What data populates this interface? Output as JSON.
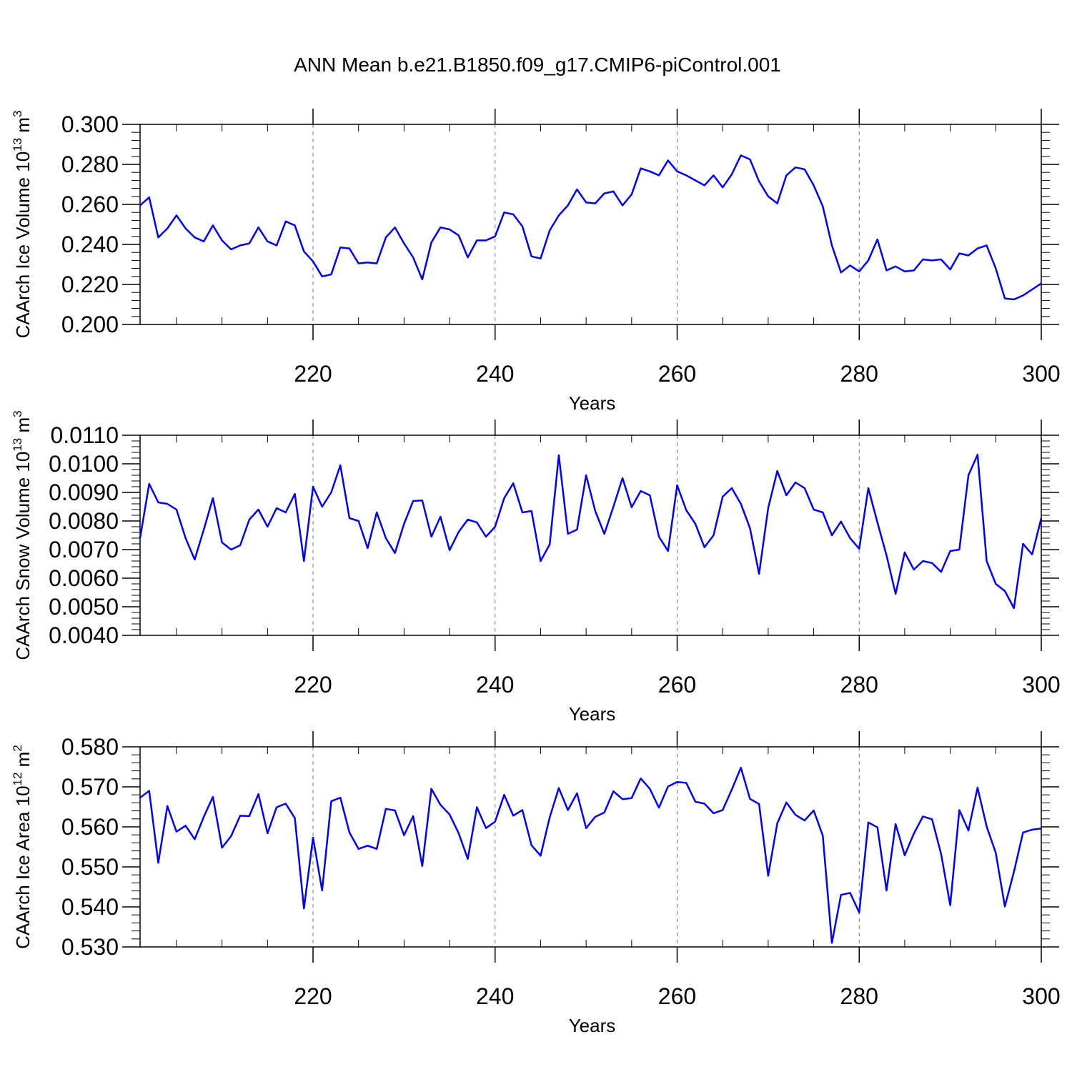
{
  "title": "ANN Mean b.e21.B1850.f09_g17.CMIP6-piControl.001",
  "colors": {
    "line": "#0000ff",
    "axis": "#000000",
    "grid": "#777777"
  },
  "chart_data": [
    {
      "type": "line",
      "name": "ice-volume",
      "xlabel": "Years",
      "ylabel": {
        "prefix": "CAArch Ice Volume 10",
        "exponent": "13",
        "unit": " m",
        "unit_exponent": "3"
      },
      "xlim": [
        201,
        300
      ],
      "ylim": [
        0.2,
        0.3
      ],
      "xticks": [
        "220",
        "240",
        "260",
        "280",
        "300"
      ],
      "xtick_values": [
        220,
        240,
        260,
        280,
        300
      ],
      "yticks": [
        "0.200",
        "0.220",
        "0.240",
        "0.260",
        "0.280",
        "0.300"
      ],
      "ytick_values": [
        0.2,
        0.22,
        0.24,
        0.26,
        0.28,
        0.3
      ],
      "x_start": 201,
      "values": [
        0.2595,
        0.2635,
        0.2435,
        0.248,
        0.2545,
        0.248,
        0.2435,
        0.2415,
        0.2495,
        0.242,
        0.2375,
        0.2395,
        0.2405,
        0.2485,
        0.2415,
        0.2395,
        0.2515,
        0.2495,
        0.2365,
        0.2315,
        0.224,
        0.225,
        0.2385,
        0.238,
        0.2305,
        0.231,
        0.2305,
        0.2435,
        0.2485,
        0.2405,
        0.2335,
        0.2225,
        0.241,
        0.2485,
        0.2475,
        0.2445,
        0.2335,
        0.242,
        0.242,
        0.244,
        0.256,
        0.255,
        0.249,
        0.234,
        0.233,
        0.247,
        0.2545,
        0.2595,
        0.2675,
        0.261,
        0.2605,
        0.2655,
        0.2665,
        0.2595,
        0.265,
        0.278,
        0.2765,
        0.2745,
        0.282,
        0.2765,
        0.2745,
        0.272,
        0.2695,
        0.2745,
        0.2685,
        0.275,
        0.2845,
        0.2825,
        0.2715,
        0.264,
        0.2605,
        0.2745,
        0.2785,
        0.2775,
        0.2695,
        0.259,
        0.2395,
        0.226,
        0.2295,
        0.2265,
        0.232,
        0.2425,
        0.227,
        0.229,
        0.2265,
        0.227,
        0.2325,
        0.232,
        0.2325,
        0.2275,
        0.2355,
        0.2345,
        0.238,
        0.2395,
        0.228,
        0.213,
        0.2125,
        0.2145,
        0.2175,
        0.2205
      ]
    },
    {
      "type": "line",
      "name": "snow-volume",
      "xlabel": "Years",
      "ylabel": {
        "prefix": "CAArch Snow Volume 10",
        "exponent": "13",
        "unit": " m",
        "unit_exponent": "3"
      },
      "xlim": [
        201,
        300
      ],
      "ylim": [
        0.004,
        0.011
      ],
      "xticks": [
        "220",
        "240",
        "260",
        "280",
        "300"
      ],
      "xtick_values": [
        220,
        240,
        260,
        280,
        300
      ],
      "yticks": [
        "0.0040",
        "0.0050",
        "0.0060",
        "0.0070",
        "0.0080",
        "0.0090",
        "0.0100",
        "0.0110"
      ],
      "ytick_values": [
        0.004,
        0.005,
        0.006,
        0.007,
        0.008,
        0.009,
        0.01,
        0.011
      ],
      "x_start": 201,
      "values": [
        0.0074,
        0.0093,
        0.00865,
        0.0086,
        0.0084,
        0.0074,
        0.00665,
        0.0077,
        0.0088,
        0.00725,
        0.007,
        0.00715,
        0.00805,
        0.0084,
        0.0078,
        0.00845,
        0.0083,
        0.00895,
        0.0066,
        0.0092,
        0.0085,
        0.009,
        0.00995,
        0.0081,
        0.008,
        0.00705,
        0.0083,
        0.0074,
        0.00688,
        0.0079,
        0.0087,
        0.00872,
        0.00745,
        0.00815,
        0.00698,
        0.00762,
        0.00805,
        0.00795,
        0.00745,
        0.0078,
        0.0088,
        0.00932,
        0.0083,
        0.00835,
        0.0066,
        0.00718,
        0.0103,
        0.00755,
        0.0077,
        0.0096,
        0.00835,
        0.00755,
        0.0085,
        0.0095,
        0.00848,
        0.00905,
        0.0089,
        0.00745,
        0.00695,
        0.00925,
        0.00838,
        0.0079,
        0.00708,
        0.0075,
        0.00885,
        0.00915,
        0.0086,
        0.00775,
        0.00615,
        0.00845,
        0.00975,
        0.0089,
        0.00935,
        0.00915,
        0.0084,
        0.0083,
        0.0075,
        0.00798,
        0.0074,
        0.00703,
        0.00915,
        0.00795,
        0.0068,
        0.00545,
        0.0069,
        0.0063,
        0.0066,
        0.00653,
        0.00622,
        0.00695,
        0.007,
        0.0096,
        0.01032,
        0.0066,
        0.0058,
        0.00555,
        0.00495,
        0.0072,
        0.00683,
        0.0081
      ]
    },
    {
      "type": "line",
      "name": "ice-area",
      "xlabel": "Years",
      "ylabel": {
        "prefix": "CAArch Ice Area 10",
        "exponent": "12",
        "unit": " m",
        "unit_exponent": "2"
      },
      "xlim": [
        201,
        300
      ],
      "ylim": [
        0.53,
        0.58
      ],
      "xticks": [
        "220",
        "240",
        "260",
        "280",
        "300"
      ],
      "xtick_values": [
        220,
        240,
        260,
        280,
        300
      ],
      "yticks": [
        "0.530",
        "0.540",
        "0.550",
        "0.560",
        "0.570",
        "0.580"
      ],
      "ytick_values": [
        0.53,
        0.54,
        0.55,
        0.56,
        0.57,
        0.58
      ],
      "x_start": 201,
      "values": [
        0.5673,
        0.569,
        0.551,
        0.5652,
        0.5588,
        0.5603,
        0.5569,
        0.5625,
        0.5675,
        0.5548,
        0.5577,
        0.5628,
        0.5627,
        0.5682,
        0.5584,
        0.5649,
        0.5658,
        0.5622,
        0.5396,
        0.5573,
        0.5441,
        0.5664,
        0.5673,
        0.5586,
        0.5545,
        0.5553,
        0.5545,
        0.5645,
        0.5641,
        0.5579,
        0.5627,
        0.5502,
        0.5695,
        0.5655,
        0.5631,
        0.5584,
        0.552,
        0.5649,
        0.5597,
        0.5613,
        0.568,
        0.5628,
        0.5642,
        0.5554,
        0.5528,
        0.5624,
        0.5697,
        0.5642,
        0.5684,
        0.5597,
        0.5625,
        0.5636,
        0.5689,
        0.5669,
        0.5672,
        0.5721,
        0.5695,
        0.5648,
        0.5701,
        0.5712,
        0.571,
        0.5663,
        0.5658,
        0.5634,
        0.5642,
        0.5693,
        0.5748,
        0.567,
        0.5657,
        0.5478,
        0.5609,
        0.5661,
        0.563,
        0.5616,
        0.5641,
        0.5578,
        0.531,
        0.543,
        0.5435,
        0.5386,
        0.5611,
        0.5599,
        0.5441,
        0.5607,
        0.5529,
        0.5583,
        0.5626,
        0.5619,
        0.5532,
        0.5404,
        0.5642,
        0.5591,
        0.5698,
        0.5601,
        0.5535,
        0.5401,
        0.5488,
        0.5586,
        0.5593,
        0.5596
      ]
    }
  ]
}
